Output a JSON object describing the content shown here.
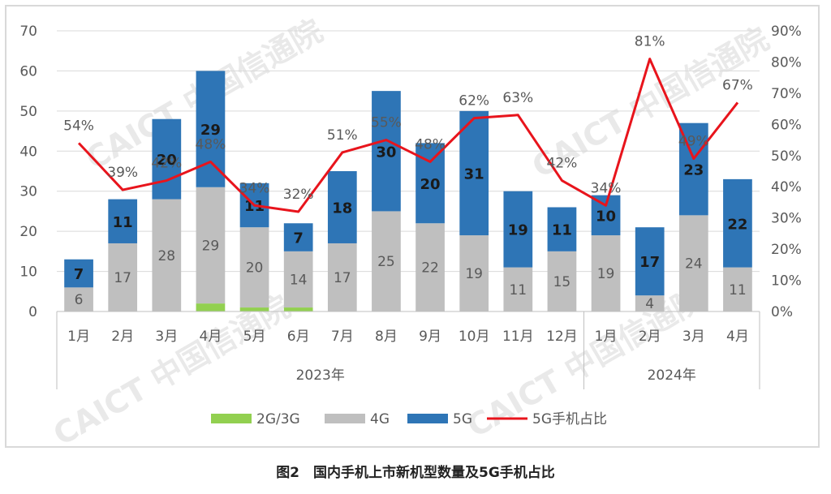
{
  "caption": "图2　国内手机上市新机型数量及5G手机占比",
  "watermark": "CAICT 中国信通院",
  "chart_data": {
    "type": "bar",
    "stacked": true,
    "categories": [
      "1月",
      "2月",
      "3月",
      "4月",
      "5月",
      "6月",
      "7月",
      "8月",
      "9月",
      "10月",
      "11月",
      "12月",
      "1月",
      "2月",
      "3月",
      "4月"
    ],
    "groups": [
      {
        "label": "2023年",
        "count": 12
      },
      {
        "label": "2024年",
        "count": 4
      }
    ],
    "series": [
      {
        "name": "2G/3G",
        "color": "#92d050",
        "values": [
          0,
          0,
          0,
          2,
          1,
          1,
          0,
          0,
          0,
          0,
          0,
          0,
          0,
          0,
          0,
          0
        ]
      },
      {
        "name": "4G",
        "color": "#bfbfbf",
        "values": [
          6,
          17,
          28,
          29,
          20,
          14,
          17,
          25,
          22,
          19,
          11,
          15,
          19,
          4,
          24,
          11
        ]
      },
      {
        "name": "5G",
        "color": "#2e75b6",
        "values": [
          7,
          11,
          20,
          29,
          11,
          7,
          18,
          30,
          20,
          31,
          19,
          11,
          10,
          17,
          23,
          22
        ]
      }
    ],
    "line_series": {
      "name": "5G手机占比",
      "color": "#e8141c",
      "values": [
        54,
        39,
        42,
        48,
        34,
        32,
        51,
        55,
        48,
        62,
        63,
        42,
        34,
        81,
        49,
        67
      ],
      "labels": [
        "54%",
        "39%",
        "42%",
        "48%",
        "34%",
        "32%",
        "51%",
        "55%",
        "48%",
        "62%",
        "63%",
        "42%",
        "34%",
        "81%",
        "49%",
        "67%"
      ]
    },
    "ylim": [
      0,
      70
    ],
    "y_ticks": [
      "0",
      "10",
      "20",
      "30",
      "40",
      "50",
      "60",
      "70"
    ],
    "y2lim": [
      0,
      90
    ],
    "y2_ticks": [
      "0%",
      "10%",
      "20%",
      "30%",
      "40%",
      "50%",
      "60%",
      "70%",
      "80%",
      "90%"
    ],
    "grid": true,
    "legend_position": "bottom"
  }
}
